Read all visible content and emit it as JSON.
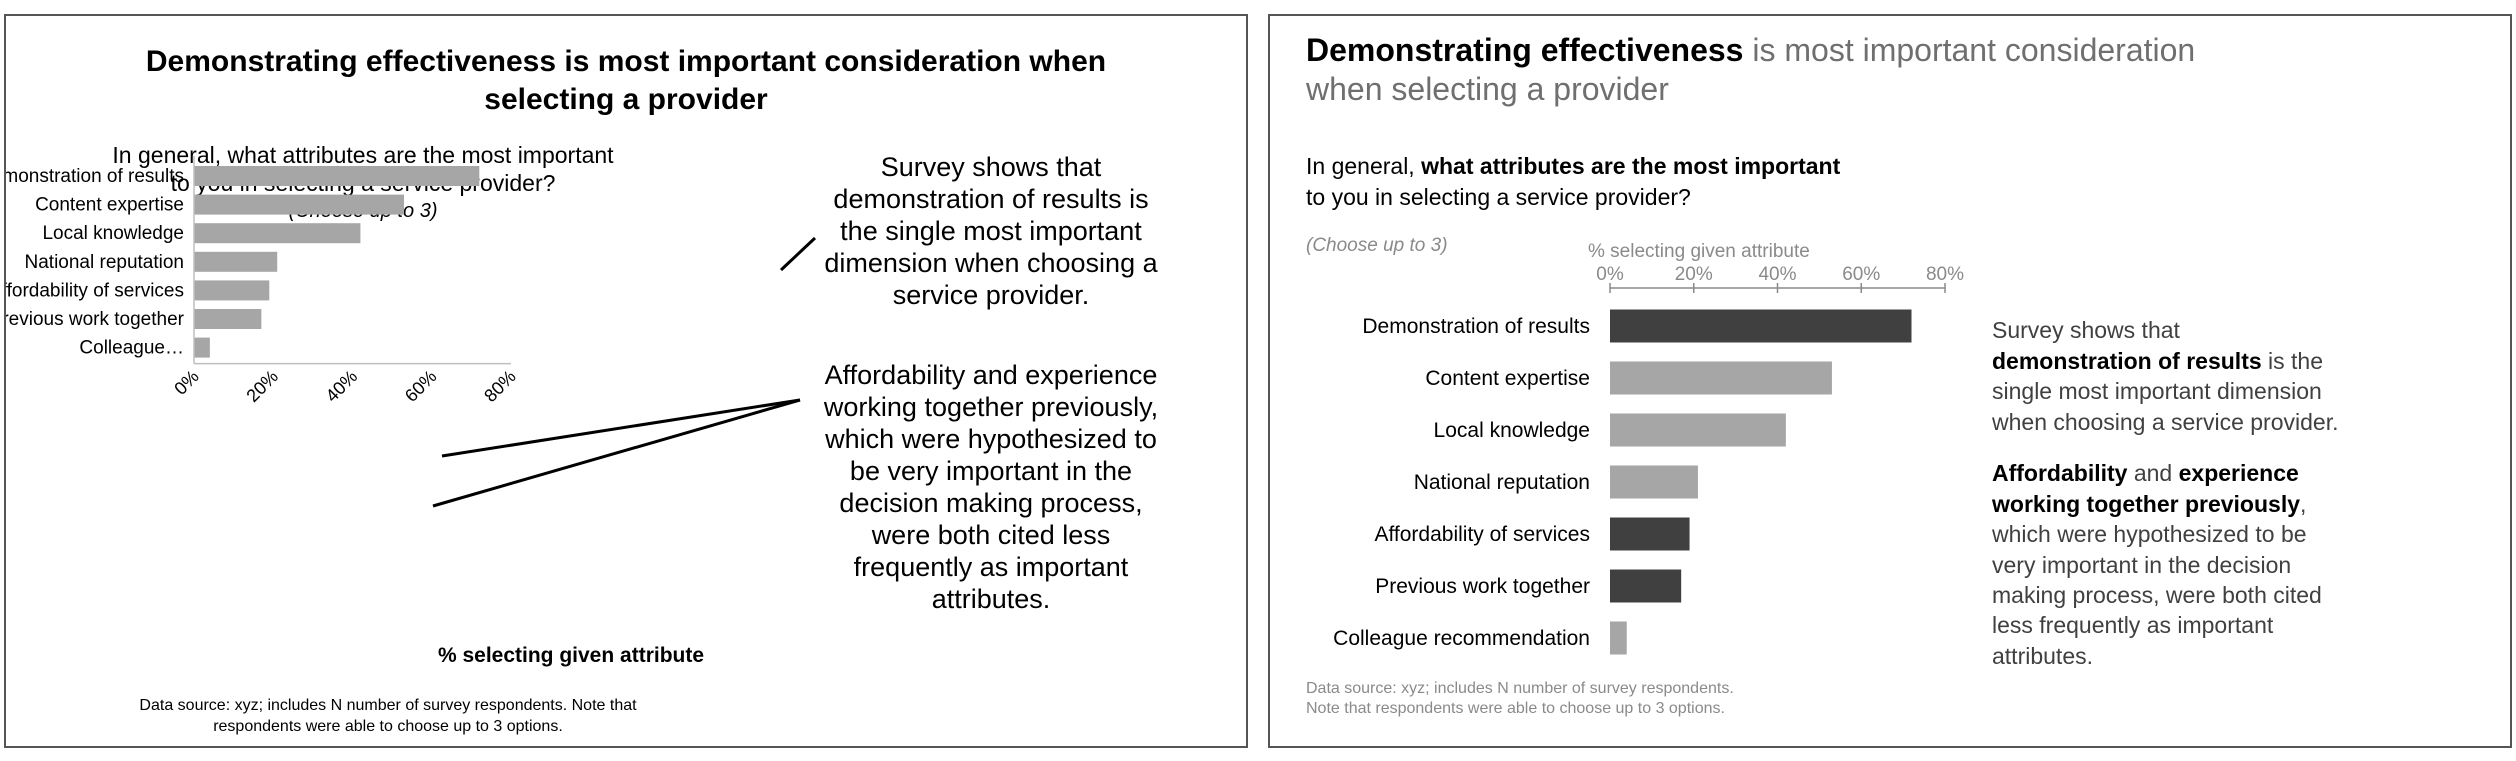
{
  "colors": {
    "bar_gray": "#a6a6a6",
    "bar_dark": "#404040",
    "text_gray": "#6f6f6f",
    "axis_gray": "#8a8a8a",
    "frame": "#555555"
  },
  "left_panel": {
    "title_line1": "Demonstrating effectiveness is most important consideration when",
    "title_line2": "selecting a provider",
    "question_line1": "In general, what attributes are the most important",
    "question_line2": "to you in selecting a service provider?",
    "question_note": "(Choose up to 3)",
    "category_labels": [
      "Demonstration of results",
      "Content expertise",
      "Local knowledge",
      "National reputation",
      "Affordability of services",
      "Previous work together",
      "Colleague…"
    ],
    "x_tick_labels": [
      "0%",
      "20%",
      "40%",
      "60%",
      "80%"
    ],
    "xlabel": "% selecting given attribute",
    "annotation1": [
      "Survey shows that",
      "demonstration of results is",
      "the single most important",
      "dimension when choosing a",
      "service provider."
    ],
    "annotation2": [
      "Affordability and experience",
      "working together previously,",
      "which were hypothesized to",
      "be very important in the",
      "decision making process,",
      "were both cited less",
      "frequently as important",
      "attributes."
    ],
    "source_line1": "Data source: xyz; includes N number of survey respondents. Note that",
    "source_line2": "respondents were able to choose up to 3 options."
  },
  "right_panel": {
    "title_line1_bold": "Demonstrating effectiveness",
    "title_line1_rest": " is most important consideration",
    "title_line2": "when selecting a provider",
    "question_line1_plain": "In general, ",
    "question_line1_bold": "what attributes are the most important",
    "question_line2": "to you in selecting a service provider?",
    "question_note": "(Choose up to 3)",
    "xlabel": "% selecting given attribute",
    "x_tick_labels": [
      "0%",
      "20%",
      "40%",
      "60%",
      "80%"
    ],
    "category_labels": [
      "Demonstration of results",
      "Content expertise",
      "Local knowledge",
      "National reputation",
      "Affordability of services",
      "Previous work together",
      "Colleague recommendation"
    ],
    "annotation1": {
      "line1": "Survey shows that",
      "line2_bold": "demonstration of results",
      "line2_rest": " is the",
      "line3": "single most important dimension",
      "line4": "when choosing a service provider."
    },
    "annotation2": {
      "line1_bold_a": "Affordability",
      "line1_plain": " and ",
      "line1_bold_b": "experience",
      "line2_bold": "working together previously",
      "line2_rest": ",",
      "line3": "which were hypothesized to be",
      "line4": "very important in the decision",
      "line5": "making process, were both cited",
      "line6": "less frequently as important",
      "line7": "attributes."
    },
    "source_line1": "Data source: xyz; includes N number of survey respondents.",
    "source_line2": "Note that respondents were able to choose up to 3 options."
  },
  "chart_data": [
    {
      "type": "bar",
      "orientation": "horizontal",
      "title": "Demonstrating effectiveness is most important consideration when selecting a provider",
      "categories": [
        "Demonstration of results",
        "Content expertise",
        "Local knowledge",
        "National reputation",
        "Affordability of services",
        "Previous work together",
        "Colleague recommendation"
      ],
      "values": [
        72,
        53,
        42,
        21,
        19,
        17,
        4
      ],
      "xlabel": "% selecting given attribute",
      "xlim": [
        0,
        80
      ],
      "grid": false
    },
    {
      "type": "bar",
      "orientation": "horizontal",
      "title": "Demonstrating effectiveness is most important consideration when selecting a provider",
      "categories": [
        "Demonstration of results",
        "Content expertise",
        "Local knowledge",
        "National reputation",
        "Affordability of services",
        "Previous work together",
        "Colleague recommendation"
      ],
      "values": [
        72,
        53,
        42,
        21,
        19,
        17,
        4
      ],
      "highlighted": [
        true,
        false,
        false,
        false,
        true,
        true,
        false
      ],
      "xlabel": "% selecting given attribute",
      "xlim": [
        0,
        80
      ],
      "grid": false
    }
  ]
}
